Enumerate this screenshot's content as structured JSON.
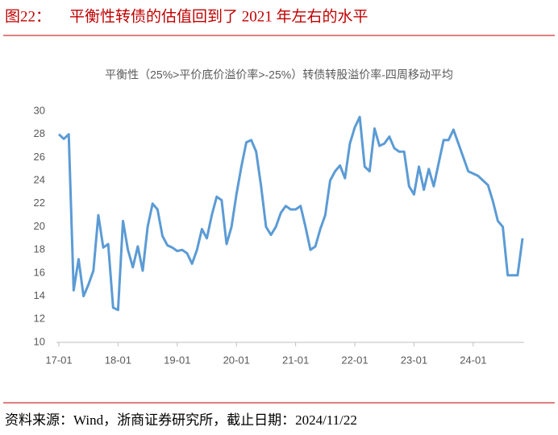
{
  "header": {
    "figure_label": "图22：",
    "title": "平衡性转债的估值回到了 2021 年左右的水平"
  },
  "chart_data": {
    "type": "line",
    "title": "平衡性（25%>平价底价溢价率>-25%）转债转股溢价率-四周移动平均",
    "categories": [
      "17-01",
      "17-02",
      "17-03",
      "17-04",
      "17-05",
      "17-06",
      "17-07",
      "17-08",
      "17-09",
      "17-10",
      "17-11",
      "17-12",
      "18-01",
      "18-02",
      "18-03",
      "18-04",
      "18-05",
      "18-06",
      "18-07",
      "18-08",
      "18-09",
      "18-10",
      "18-11",
      "18-12",
      "19-01",
      "19-02",
      "19-03",
      "19-04",
      "19-05",
      "19-06",
      "19-07",
      "19-08",
      "19-09",
      "19-10",
      "19-11",
      "19-12",
      "20-01",
      "20-02",
      "20-03",
      "20-04",
      "20-05",
      "20-06",
      "20-07",
      "20-08",
      "20-09",
      "20-10",
      "20-11",
      "20-12",
      "21-01",
      "21-02",
      "21-03",
      "21-04",
      "21-05",
      "21-06",
      "21-07",
      "21-08",
      "21-09",
      "21-10",
      "21-11",
      "21-12",
      "22-01",
      "22-02",
      "22-03",
      "22-04",
      "22-05",
      "22-06",
      "22-07",
      "22-08",
      "22-09",
      "22-10",
      "22-11",
      "22-12",
      "23-01",
      "23-02",
      "23-03",
      "23-04",
      "23-05",
      "23-06",
      "23-07",
      "23-08",
      "23-09",
      "23-10",
      "23-11",
      "23-12",
      "24-01",
      "24-02",
      "24-03",
      "24-04",
      "24-05",
      "24-06",
      "24-07",
      "24-08",
      "24-09",
      "24-10",
      "24-11"
    ],
    "series": [
      {
        "name": "平衡性转债转股溢价率",
        "color": "#5b9bd5",
        "values": [
          28.0,
          27.6,
          28.0,
          14.5,
          17.2,
          14.0,
          15.0,
          16.2,
          21.0,
          18.2,
          18.5,
          13.0,
          12.8,
          20.5,
          18.0,
          16.5,
          18.3,
          16.2,
          20.0,
          22.0,
          21.5,
          19.2,
          18.4,
          18.2,
          17.9,
          18.0,
          17.7,
          16.8,
          18.0,
          19.8,
          19.0,
          21.0,
          22.6,
          22.3,
          18.5,
          20.0,
          22.8,
          25.2,
          27.3,
          27.5,
          26.5,
          23.5,
          20.0,
          19.3,
          20.0,
          21.2,
          21.8,
          21.5,
          21.5,
          21.8,
          20.0,
          18.0,
          18.3,
          19.8,
          21.0,
          24.0,
          24.8,
          25.3,
          24.2,
          27.2,
          28.6,
          29.5,
          25.2,
          24.8,
          28.5,
          27.0,
          27.2,
          27.8,
          26.8,
          26.5,
          26.5,
          23.5,
          22.8,
          25.2,
          23.2,
          25.0,
          23.5,
          25.5,
          27.5,
          27.5,
          28.4,
          27.2,
          26.0,
          24.8,
          24.6,
          24.4,
          24.0,
          23.6,
          22.2,
          20.5,
          20.0,
          15.8,
          15.8,
          15.8,
          19.0
        ]
      }
    ],
    "xticks": [
      "17-01",
      "18-01",
      "19-01",
      "20-01",
      "21-01",
      "22-01",
      "23-01",
      "24-01"
    ],
    "ylim": [
      10,
      30
    ],
    "yticks": [
      10,
      12,
      14,
      16,
      18,
      20,
      22,
      24,
      26,
      28,
      30
    ]
  },
  "footer": {
    "source": "资料来源：Wind，浙商证券研究所，截止日期：2024/11/22"
  }
}
